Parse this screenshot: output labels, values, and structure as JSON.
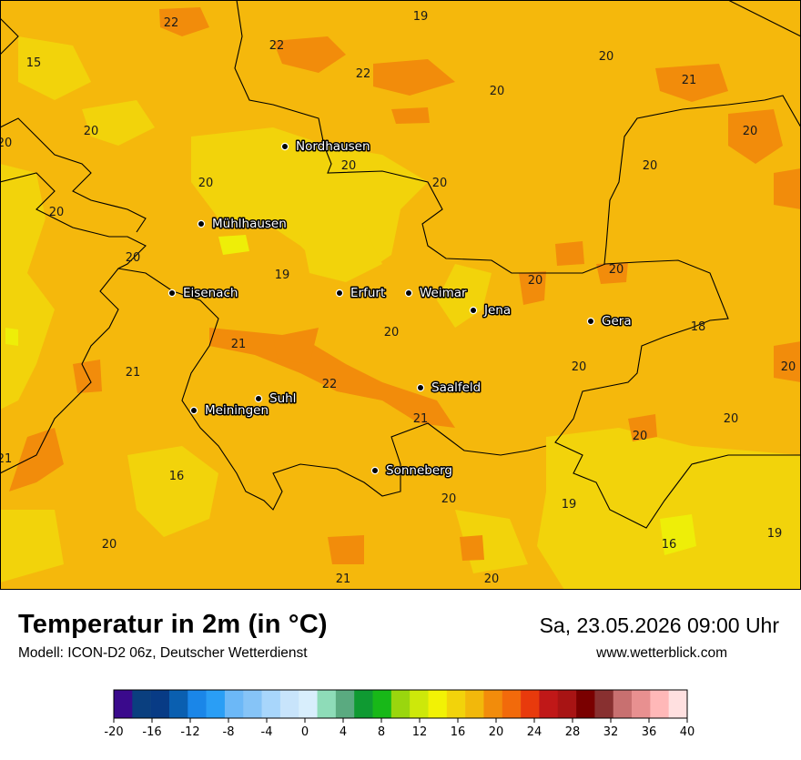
{
  "header": {
    "title": "Temperatur in 2m (in °C)",
    "model": "Modell: ICON-D2 06z, Deutscher Wetterdienst",
    "datetime": "Sa, 23.05.2026 09:00 Uhr",
    "website": "www.wetterblick.com"
  },
  "map": {
    "base_color": "#f5b80c",
    "cities": [
      {
        "name": "Nordhausen"
      },
      {
        "name": "Mühlhausen"
      },
      {
        "name": "Eisenach"
      },
      {
        "name": "Erfurt"
      },
      {
        "name": "Weimar"
      },
      {
        "name": "Jena"
      },
      {
        "name": "Gera"
      },
      {
        "name": "Suhl"
      },
      {
        "name": "Meiningen"
      },
      {
        "name": "Saalfeld"
      },
      {
        "name": "Sonneberg"
      }
    ],
    "values": [
      "22",
      "19",
      "22",
      "22",
      "20",
      "20",
      "21",
      "15",
      "20",
      "20",
      "20",
      "20",
      "20",
      "20",
      "20",
      "20",
      "19",
      "20",
      "20",
      "20",
      "18",
      "21",
      "20",
      "21",
      "20",
      "20",
      "22",
      "21",
      "20",
      "21",
      "16",
      "20",
      "19",
      "20",
      "20",
      "16",
      "19",
      "21",
      "20"
    ]
  },
  "legend": {
    "colors": [
      "#3a0a8c",
      "#0a3f7f",
      "#083b85",
      "#0a5fb0",
      "#1a86e8",
      "#2a9ef5",
      "#6cb8f7",
      "#86c4f7",
      "#a8d6fb",
      "#c8e4fb",
      "#d8eefc",
      "#8edcb8",
      "#5aaa80",
      "#0f9a32",
      "#18b818",
      "#9ad60e",
      "#cde80a",
      "#f2f205",
      "#f2d30b",
      "#f2b80b",
      "#f28c0b",
      "#f26a0b",
      "#e83a0c",
      "#c01818",
      "#a81414",
      "#7a0000",
      "#883030",
      "#c87070",
      "#e89090",
      "#ffb8b8",
      "#ffe0e0"
    ],
    "ticks": [
      "-20",
      "-16",
      "-12",
      "-8",
      "-4",
      "0",
      "4",
      "8",
      "12",
      "16",
      "20",
      "24",
      "28",
      "32",
      "36",
      "40"
    ]
  }
}
